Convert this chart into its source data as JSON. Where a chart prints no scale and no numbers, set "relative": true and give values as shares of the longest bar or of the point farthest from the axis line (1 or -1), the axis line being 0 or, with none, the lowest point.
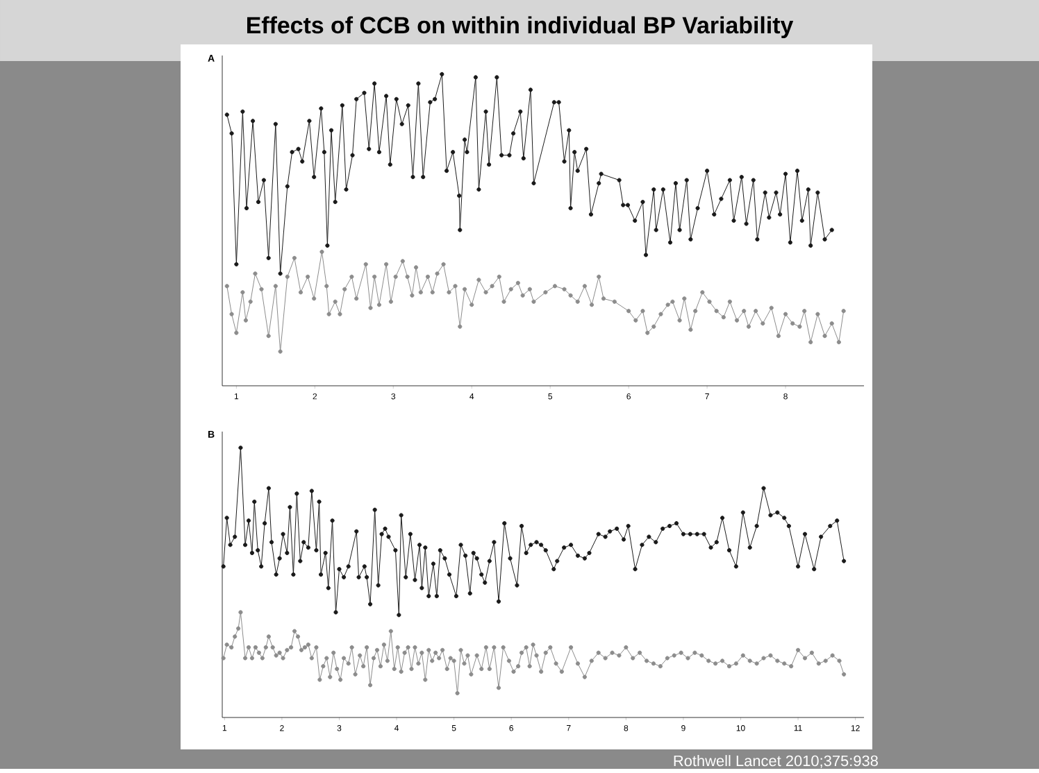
{
  "chart_data": [
    {
      "type": "line",
      "title": "Effects of CCB on within individual BP Variability",
      "subtitle": "A",
      "relative": true,
      "marker": "circle",
      "tick_labels": "x",
      "xlim": [
        0.82,
        9.0
      ],
      "xticks": [
        1,
        2,
        3,
        4,
        5,
        6,
        7,
        8
      ],
      "series": [
        {
          "color": "#1a1a1a",
          "x": [
            0.88,
            0.94,
            1.0,
            1.08,
            1.13,
            1.21,
            1.28,
            1.35,
            1.41,
            1.5,
            1.56,
            1.65,
            1.71,
            1.79,
            1.84,
            1.93,
            1.99,
            2.08,
            2.12,
            2.16,
            2.21,
            2.26,
            2.35,
            2.4,
            2.48,
            2.53,
            2.63,
            2.69,
            2.76,
            2.82,
            2.91,
            2.96,
            3.04,
            3.11,
            3.19,
            3.25,
            3.32,
            3.38,
            3.47,
            3.53,
            3.62,
            3.68,
            3.76,
            3.84,
            3.85,
            3.91,
            3.94,
            4.05,
            4.09,
            4.18,
            4.22,
            4.32,
            4.38,
            4.48,
            4.53,
            4.62,
            4.66,
            4.75,
            4.79,
            5.05,
            5.11,
            5.18,
            5.24,
            5.26,
            5.31,
            5.35,
            5.46,
            5.52,
            5.62,
            5.65,
            5.88,
            5.93,
            5.99,
            6.08,
            6.18,
            6.22,
            6.32,
            6.35,
            6.44,
            6.53,
            6.6,
            6.65,
            6.74,
            6.79,
            6.88,
            7.0,
            7.09,
            7.18,
            7.29,
            7.34,
            7.44,
            7.5,
            7.59,
            7.64,
            7.74,
            7.79,
            7.88,
            7.93,
            8.0,
            8.06,
            8.15,
            8.21,
            8.29,
            8.32,
            8.41,
            8.5,
            8.59
          ],
          "values": [
            0.87,
            0.81,
            0.39,
            0.88,
            0.57,
            0.85,
            0.59,
            0.66,
            0.41,
            0.84,
            0.36,
            0.64,
            0.75,
            0.76,
            0.72,
            0.85,
            0.67,
            0.89,
            0.75,
            0.45,
            0.82,
            0.59,
            0.9,
            0.63,
            0.74,
            0.92,
            0.94,
            0.76,
            0.97,
            0.75,
            0.93,
            0.71,
            0.92,
            0.84,
            0.9,
            0.67,
            0.97,
            0.67,
            0.91,
            0.92,
            1.0,
            0.69,
            0.75,
            0.61,
            0.5,
            0.79,
            0.75,
            0.99,
            0.63,
            0.88,
            0.71,
            0.99,
            0.74,
            0.74,
            0.81,
            0.88,
            0.73,
            0.95,
            0.65,
            0.91,
            0.91,
            0.72,
            0.82,
            0.57,
            0.75,
            0.69,
            0.76,
            0.55,
            0.65,
            0.68,
            0.66,
            0.58,
            0.58,
            0.53,
            0.59,
            0.42,
            0.63,
            0.5,
            0.63,
            0.46,
            0.65,
            0.5,
            0.66,
            0.47,
            0.57,
            0.69,
            0.55,
            0.6,
            0.66,
            0.53,
            0.67,
            0.52,
            0.66,
            0.47,
            0.62,
            0.54,
            0.62,
            0.55,
            0.68,
            0.46,
            0.69,
            0.53,
            0.63,
            0.45,
            0.62,
            0.47,
            0.5
          ]
        },
        {
          "color": "#8c8c8c",
          "x": [
            0.88,
            0.94,
            1.0,
            1.08,
            1.12,
            1.18,
            1.24,
            1.32,
            1.41,
            1.5,
            1.56,
            1.65,
            1.74,
            1.82,
            1.91,
            1.99,
            2.09,
            2.15,
            2.18,
            2.26,
            2.32,
            2.38,
            2.47,
            2.53,
            2.65,
            2.71,
            2.76,
            2.82,
            2.91,
            2.97,
            3.03,
            3.12,
            3.18,
            3.24,
            3.29,
            3.35,
            3.44,
            3.5,
            3.56,
            3.64,
            3.71,
            3.79,
            3.85,
            3.91,
            4.0,
            4.09,
            4.18,
            4.26,
            4.35,
            4.41,
            4.5,
            4.59,
            4.65,
            4.74,
            4.79,
            4.94,
            5.06,
            5.18,
            5.26,
            5.35,
            5.44,
            5.53,
            5.62,
            5.68,
            5.82,
            6.0,
            6.09,
            6.18,
            6.24,
            6.32,
            6.41,
            6.5,
            6.56,
            6.65,
            6.71,
            6.79,
            6.85,
            6.94,
            7.03,
            7.12,
            7.21,
            7.29,
            7.38,
            7.47,
            7.53,
            7.62,
            7.71,
            7.82,
            7.91,
            8.0,
            8.09,
            8.18,
            8.24,
            8.32,
            8.41,
            8.5,
            8.59,
            8.68,
            8.74
          ],
          "values": [
            0.32,
            0.23,
            0.17,
            0.3,
            0.21,
            0.27,
            0.36,
            0.31,
            0.16,
            0.32,
            0.11,
            0.35,
            0.41,
            0.3,
            0.35,
            0.28,
            0.43,
            0.32,
            0.23,
            0.27,
            0.23,
            0.31,
            0.35,
            0.28,
            0.39,
            0.25,
            0.35,
            0.26,
            0.39,
            0.27,
            0.35,
            0.4,
            0.35,
            0.29,
            0.38,
            0.3,
            0.35,
            0.3,
            0.36,
            0.39,
            0.3,
            0.32,
            0.19,
            0.31,
            0.26,
            0.34,
            0.3,
            0.32,
            0.35,
            0.27,
            0.31,
            0.33,
            0.29,
            0.31,
            0.27,
            0.3,
            0.32,
            0.31,
            0.29,
            0.27,
            0.32,
            0.26,
            0.35,
            0.28,
            0.27,
            0.24,
            0.21,
            0.24,
            0.17,
            0.19,
            0.23,
            0.26,
            0.27,
            0.21,
            0.28,
            0.18,
            0.24,
            0.3,
            0.27,
            0.24,
            0.22,
            0.27,
            0.21,
            0.24,
            0.19,
            0.24,
            0.2,
            0.25,
            0.16,
            0.23,
            0.2,
            0.19,
            0.24,
            0.14,
            0.23,
            0.16,
            0.2,
            0.14,
            0.24
          ]
        }
      ]
    },
    {
      "type": "line",
      "title": "B",
      "relative": true,
      "marker": "circle",
      "tick_labels": "x",
      "xlim": [
        0.96,
        12.15
      ],
      "xticks": [
        1,
        2,
        3,
        4,
        5,
        6,
        7,
        8,
        9,
        10,
        11,
        12
      ],
      "annotations": [
        "Rothwell Lancet 2010;375:938"
      ],
      "series": [
        {
          "color": "#1a1a1a",
          "x": [
            0.98,
            1.04,
            1.1,
            1.18,
            1.28,
            1.36,
            1.42,
            1.48,
            1.52,
            1.58,
            1.64,
            1.7,
            1.77,
            1.82,
            1.9,
            1.96,
            2.02,
            2.09,
            2.14,
            2.2,
            2.26,
            2.32,
            2.38,
            2.46,
            2.52,
            2.6,
            2.65,
            2.68,
            2.76,
            2.81,
            2.88,
            2.94,
            3.0,
            3.08,
            3.16,
            3.3,
            3.34,
            3.44,
            3.48,
            3.54,
            3.62,
            3.68,
            3.74,
            3.8,
            3.86,
            3.98,
            4.04,
            4.08,
            4.16,
            4.24,
            4.32,
            4.4,
            4.44,
            4.5,
            4.56,
            4.64,
            4.7,
            4.76,
            4.84,
            4.92,
            5.04,
            5.12,
            5.2,
            5.28,
            5.34,
            5.4,
            5.48,
            5.54,
            5.62,
            5.7,
            5.78,
            5.88,
            5.98,
            6.1,
            6.18,
            6.26,
            6.34,
            6.44,
            6.52,
            6.6,
            6.74,
            6.8,
            6.92,
            7.04,
            7.16,
            7.28,
            7.36,
            7.52,
            7.64,
            7.72,
            7.84,
            7.96,
            8.04,
            8.16,
            8.28,
            8.4,
            8.52,
            8.64,
            8.76,
            8.88,
            9.0,
            9.12,
            9.24,
            9.36,
            9.48,
            9.58,
            9.68,
            9.8,
            9.92,
            10.04,
            10.16,
            10.28,
            10.4,
            10.52,
            10.64,
            10.76,
            10.84,
            11.0,
            11.12,
            11.28,
            11.4,
            11.56,
            11.68,
            11.8
          ],
          "values": [
            0.56,
            0.74,
            0.64,
            0.67,
            1.0,
            0.64,
            0.73,
            0.61,
            0.8,
            0.62,
            0.56,
            0.72,
            0.85,
            0.65,
            0.53,
            0.59,
            0.68,
            0.61,
            0.78,
            0.53,
            0.83,
            0.58,
            0.65,
            0.63,
            0.84,
            0.62,
            0.8,
            0.53,
            0.61,
            0.48,
            0.73,
            0.39,
            0.55,
            0.52,
            0.56,
            0.69,
            0.52,
            0.56,
            0.52,
            0.42,
            0.77,
            0.49,
            0.68,
            0.7,
            0.67,
            0.62,
            0.38,
            0.75,
            0.52,
            0.68,
            0.51,
            0.64,
            0.48,
            0.63,
            0.45,
            0.57,
            0.45,
            0.62,
            0.59,
            0.53,
            0.45,
            0.64,
            0.6,
            0.46,
            0.61,
            0.59,
            0.53,
            0.5,
            0.58,
            0.65,
            0.43,
            0.72,
            0.59,
            0.49,
            0.71,
            0.61,
            0.64,
            0.65,
            0.64,
            0.62,
            0.55,
            0.58,
            0.63,
            0.64,
            0.6,
            0.59,
            0.61,
            0.68,
            0.67,
            0.69,
            0.7,
            0.66,
            0.71,
            0.55,
            0.64,
            0.67,
            0.65,
            0.7,
            0.71,
            0.72,
            0.68,
            0.68,
            0.68,
            0.68,
            0.63,
            0.65,
            0.74,
            0.62,
            0.56,
            0.76,
            0.63,
            0.71,
            0.85,
            0.75,
            0.76,
            0.74,
            0.71,
            0.56,
            0.68,
            0.55,
            0.67,
            0.71,
            0.73,
            0.58
          ]
        },
        {
          "color": "#8c8c8c",
          "x": [
            0.98,
            1.04,
            1.12,
            1.18,
            1.24,
            1.28,
            1.36,
            1.42,
            1.48,
            1.54,
            1.6,
            1.66,
            1.72,
            1.77,
            1.84,
            1.9,
            1.96,
            2.02,
            2.09,
            2.16,
            2.22,
            2.28,
            2.34,
            2.4,
            2.46,
            2.52,
            2.6,
            2.66,
            2.72,
            2.78,
            2.84,
            2.9,
            2.96,
            3.02,
            3.08,
            3.16,
            3.22,
            3.28,
            3.36,
            3.42,
            3.48,
            3.54,
            3.6,
            3.66,
            3.72,
            3.78,
            3.84,
            3.9,
            3.96,
            4.02,
            4.08,
            4.14,
            4.2,
            4.26,
            4.32,
            4.38,
            4.44,
            4.5,
            4.56,
            4.62,
            4.68,
            4.74,
            4.8,
            4.88,
            4.94,
            5.0,
            5.06,
            5.12,
            5.18,
            5.24,
            5.3,
            5.4,
            5.48,
            5.56,
            5.62,
            5.7,
            5.78,
            5.86,
            5.96,
            6.04,
            6.12,
            6.18,
            6.26,
            6.32,
            6.38,
            6.44,
            6.52,
            6.6,
            6.68,
            6.78,
            6.88,
            7.04,
            7.16,
            7.28,
            7.4,
            7.52,
            7.64,
            7.76,
            7.88,
            8.0,
            8.12,
            8.24,
            8.36,
            8.48,
            8.6,
            8.72,
            8.84,
            8.96,
            9.08,
            9.2,
            9.32,
            9.44,
            9.56,
            9.68,
            9.8,
            9.92,
            10.04,
            10.16,
            10.28,
            10.4,
            10.52,
            10.64,
            10.76,
            10.88,
            11.0,
            11.12,
            11.24,
            11.36,
            11.48,
            11.6,
            11.72,
            11.8
          ],
          "values": [
            0.22,
            0.27,
            0.26,
            0.3,
            0.33,
            0.39,
            0.22,
            0.26,
            0.22,
            0.26,
            0.24,
            0.22,
            0.26,
            0.3,
            0.26,
            0.23,
            0.24,
            0.22,
            0.25,
            0.26,
            0.32,
            0.3,
            0.25,
            0.26,
            0.27,
            0.22,
            0.26,
            0.14,
            0.19,
            0.22,
            0.15,
            0.24,
            0.18,
            0.14,
            0.22,
            0.2,
            0.26,
            0.16,
            0.23,
            0.19,
            0.26,
            0.12,
            0.22,
            0.25,
            0.19,
            0.27,
            0.21,
            0.32,
            0.18,
            0.26,
            0.17,
            0.24,
            0.26,
            0.18,
            0.26,
            0.2,
            0.24,
            0.14,
            0.25,
            0.21,
            0.24,
            0.22,
            0.25,
            0.18,
            0.22,
            0.21,
            0.09,
            0.25,
            0.2,
            0.23,
            0.16,
            0.23,
            0.18,
            0.26,
            0.18,
            0.26,
            0.11,
            0.26,
            0.21,
            0.17,
            0.19,
            0.24,
            0.26,
            0.19,
            0.27,
            0.23,
            0.17,
            0.24,
            0.26,
            0.2,
            0.17,
            0.26,
            0.2,
            0.15,
            0.21,
            0.24,
            0.22,
            0.24,
            0.23,
            0.26,
            0.22,
            0.24,
            0.21,
            0.2,
            0.19,
            0.22,
            0.23,
            0.24,
            0.22,
            0.24,
            0.23,
            0.21,
            0.2,
            0.21,
            0.19,
            0.2,
            0.23,
            0.21,
            0.2,
            0.22,
            0.23,
            0.21,
            0.2,
            0.19,
            0.25,
            0.22,
            0.24,
            0.2,
            0.21,
            0.23,
            0.21,
            0.16
          ]
        }
      ]
    }
  ]
}
